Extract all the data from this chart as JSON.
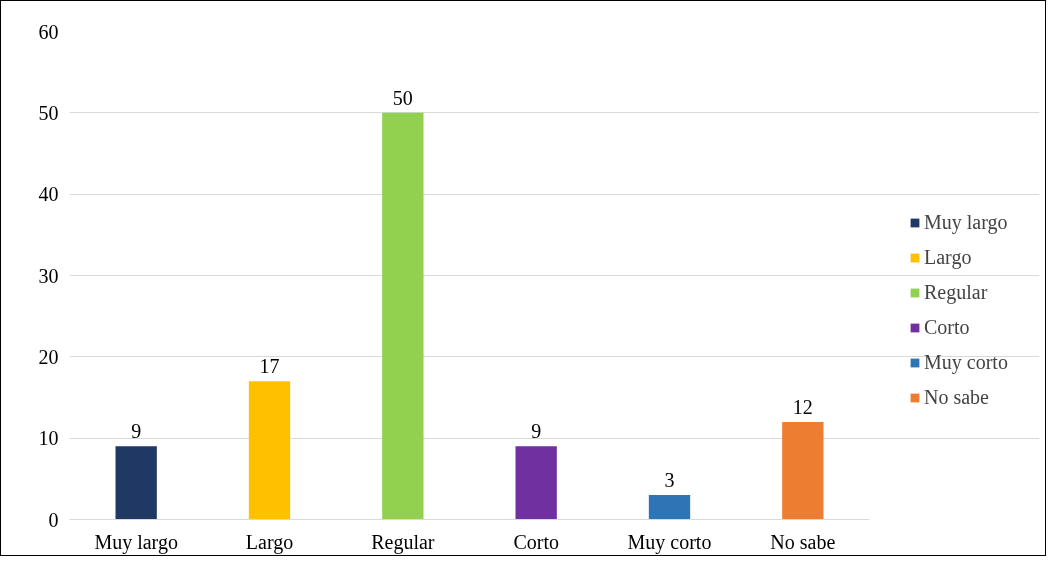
{
  "chart_data": {
    "type": "bar",
    "categories": [
      "Muy largo",
      "Largo",
      "Regular",
      "Corto",
      "Muy corto",
      "No sabe"
    ],
    "series": [
      {
        "name": "Muy largo",
        "color": "#203864",
        "values": [
          9,
          null,
          null,
          null,
          null,
          null
        ]
      },
      {
        "name": "Largo",
        "color": "#ffc000",
        "values": [
          null,
          17,
          null,
          null,
          null,
          null
        ]
      },
      {
        "name": "Regular",
        "color": "#92d050",
        "values": [
          null,
          null,
          50,
          null,
          null,
          null
        ]
      },
      {
        "name": "Corto",
        "color": "#7030a0",
        "values": [
          null,
          null,
          null,
          9,
          null,
          null
        ]
      },
      {
        "name": "Muy corto",
        "color": "#2e75b6",
        "values": [
          null,
          null,
          null,
          null,
          3,
          null
        ]
      },
      {
        "name": "No sabe",
        "color": "#ed7d31",
        "values": [
          null,
          null,
          null,
          null,
          null,
          12
        ]
      }
    ],
    "ylim": [
      0,
      60
    ],
    "yticks": [
      0,
      10,
      20,
      30,
      40,
      50,
      60
    ],
    "grid": "y",
    "legend": "right",
    "data_labels": true
  }
}
